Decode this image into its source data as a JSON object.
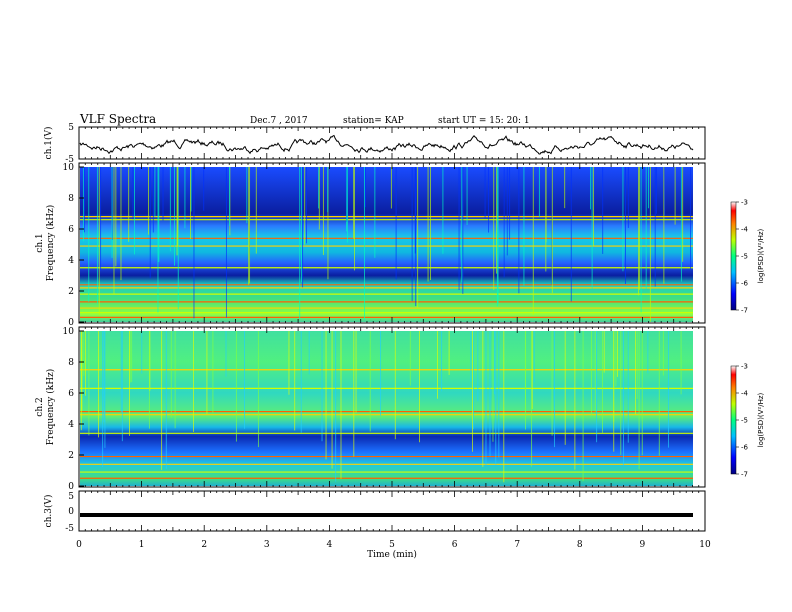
{
  "header": {
    "title": "VLF Spectra",
    "date": "Dec.7 , 2017",
    "station": "station= KAP",
    "start": "start  UT =   15: 20: 1"
  },
  "chart_data": [
    {
      "type": "line",
      "panel": "ch1-waveform",
      "ylabel": "ch.1(V)",
      "ylim": [
        -5,
        5
      ],
      "yticks": [
        "5",
        "-5"
      ],
      "xlim": [
        0,
        10
      ],
      "description_values": "noisy voltage trace around ~ -0.5 V"
    },
    {
      "type": "heatmap",
      "panel": "ch1-spectrogram",
      "ylabel_top": "ch.1",
      "ylabel": "Frequency (kHz)",
      "ylim": [
        0,
        10
      ],
      "yticks": [
        "0",
        "2",
        "4",
        "6",
        "8",
        "10"
      ],
      "xlim": [
        0,
        10
      ],
      "colorbar": {
        "label": "log(PSD)(V²/Hz)",
        "range": [
          -7,
          -3
        ],
        "ticks": [
          "-3",
          "-4",
          "-5",
          "-6",
          "-7"
        ]
      },
      "bands_khz": [
        0.3,
        0.6,
        0.9,
        1.3,
        1.8,
        2.2,
        2.4,
        3.5,
        4.9,
        5.4,
        6.6,
        6.8
      ]
    },
    {
      "type": "heatmap",
      "panel": "ch2-spectrogram",
      "ylabel_top": "ch.2",
      "ylabel": "Frequency (kHz)",
      "ylim": [
        0,
        10
      ],
      "yticks": [
        "0",
        "2",
        "4",
        "6",
        "8",
        "10"
      ],
      "xlim": [
        0,
        10
      ],
      "colorbar": {
        "label": "log(PSD)(V²/Hz)",
        "range": [
          -7,
          -3
        ],
        "ticks": [
          "-3",
          "-4",
          "-5",
          "-6",
          "-7"
        ]
      },
      "bands_khz": [
        0.5,
        0.9,
        1.4,
        1.9,
        3.4,
        4.6,
        4.8,
        6.3,
        7.5
      ]
    },
    {
      "type": "line",
      "panel": "ch3-waveform",
      "ylabel": "ch.3(V)",
      "ylim": [
        -5,
        5
      ],
      "yticks": [
        "5",
        "0",
        "-5"
      ],
      "xlim": [
        0,
        10
      ],
      "values_constant": -1.0
    }
  ],
  "xaxis": {
    "label": "Time (min)",
    "ticks": [
      "0",
      "1",
      "2",
      "3",
      "4",
      "5",
      "6",
      "7",
      "8",
      "9",
      "10"
    ]
  }
}
